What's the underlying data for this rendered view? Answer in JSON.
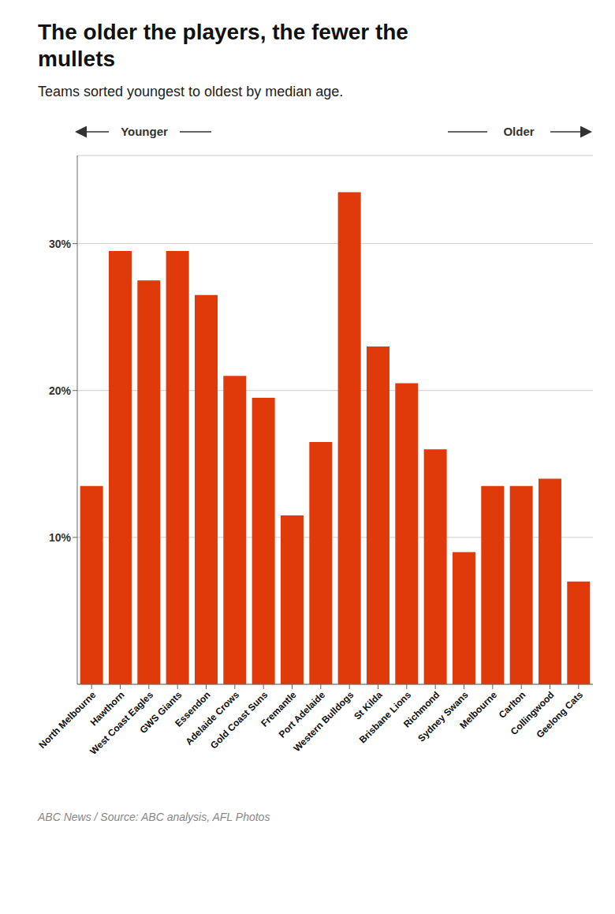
{
  "chart_data": {
    "type": "bar",
    "title": "The older the players, the fewer the\nmullets",
    "subtitle": "Teams sorted youngest to oldest by median age.",
    "footer": "ABC News / Source: ABC analysis, AFL Photos",
    "annotations": [
      "Younger",
      "Older"
    ],
    "categories": [
      "North Melbourne",
      "Hawthorn",
      "West Coast Eagles",
      "GWS Giants",
      "Essendon",
      "Adelaide Crows",
      "Gold Coast Suns",
      "Fremantle",
      "Port Adelaide",
      "Western Bulldogs",
      "St Kilda",
      "Brisbane Lions",
      "Richmond",
      "Sydney Swans",
      "Melbourne",
      "Carlton",
      "Collingwood",
      "Geelong Cats"
    ],
    "values": [
      13.5,
      29.5,
      27.5,
      29.5,
      26.5,
      21.0,
      19.5,
      11.5,
      16.5,
      33.5,
      23.0,
      20.5,
      16.0,
      9.0,
      13.5,
      13.5,
      14.0,
      7.0
    ],
    "color": "#e03a0a",
    "ylim": [
      0,
      36
    ],
    "yticks": [
      {
        "value": 10,
        "label": "10%"
      },
      {
        "value": 20,
        "label": "20%"
      },
      {
        "value": 30,
        "label": "30%"
      }
    ],
    "grid": true
  }
}
